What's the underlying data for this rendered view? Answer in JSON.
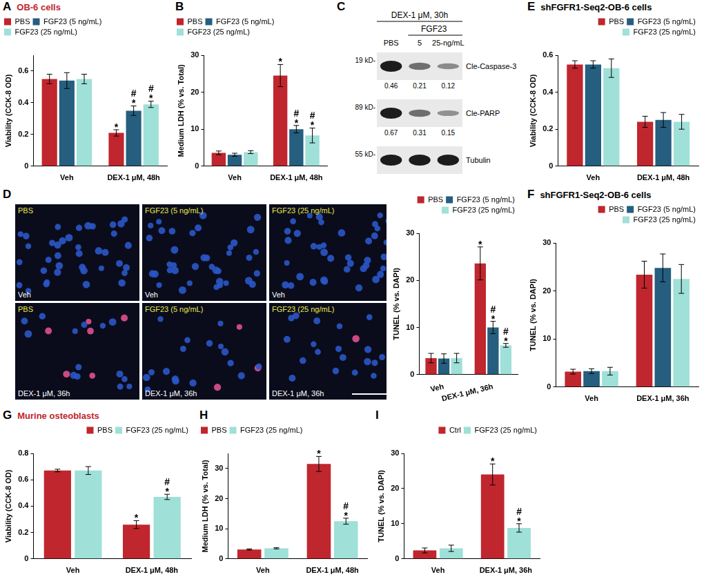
{
  "chart_data": [
    {
      "type": "bar",
      "panel": "A",
      "title": "OB-6 cells",
      "categories": [
        "Veh",
        "DEX-1 μM, 48h"
      ],
      "y_label": "Viability (CCK-8 OD)",
      "ylim": [
        0,
        0.7
      ],
      "yticks": [
        0,
        0.2,
        0.4,
        0.6
      ],
      "grid": false,
      "legend": "upper left",
      "series": [
        {
          "name": "PBS",
          "color": "#c0262d",
          "values": [
            0.55,
            0.21
          ],
          "errors": [
            0.03,
            0.02
          ],
          "annotations": [
            null,
            [
              "*"
            ]
          ]
        },
        {
          "name": "FGF23 (5 ng/mL)",
          "color": "#255e7e",
          "values": [
            0.54,
            0.35
          ],
          "errors": [
            0.05,
            0.03
          ],
          "annotations": [
            null,
            [
              "#",
              "*"
            ]
          ]
        },
        {
          "name": "FGF23 (25 ng/mL)",
          "color": "#9fe0d8",
          "values": [
            0.55,
            0.39
          ],
          "errors": [
            0.03,
            0.02
          ],
          "annotations": [
            null,
            [
              "#",
              "*"
            ]
          ]
        }
      ]
    },
    {
      "type": "bar",
      "panel": "B",
      "categories": [
        "Veh",
        "DEX-1 μM, 48h"
      ],
      "y_label": "Medium LDH (% vs. Total)",
      "ylim": [
        0,
        30
      ],
      "yticks": [
        0,
        10,
        20,
        30
      ],
      "grid": false,
      "legend": "upper left",
      "series": [
        {
          "name": "PBS",
          "color": "#c0262d",
          "values": [
            3.6,
            24.5
          ],
          "errors": [
            0.5,
            3
          ],
          "annotations": [
            null,
            [
              "*"
            ]
          ]
        },
        {
          "name": "FGF23 (5 ng/mL)",
          "color": "#255e7e",
          "values": [
            3.1,
            10
          ],
          "errors": [
            0.4,
            1
          ],
          "annotations": [
            null,
            [
              "#",
              "*"
            ]
          ]
        },
        {
          "name": "FGF23 (25 ng/mL)",
          "color": "#9fe0d8",
          "values": [
            3.8,
            8.3
          ],
          "errors": [
            0.4,
            2
          ],
          "annotations": [
            null,
            [
              "#",
              "*"
            ]
          ]
        }
      ]
    },
    {
      "type": "bar",
      "categories": [
        "Veh",
        "DEX-1 μM, 36h"
      ],
      "y_label": "TUNEL (% vs. DAPI)",
      "ylim": [
        0,
        30
      ],
      "yticks": [
        0,
        10,
        20,
        30
      ],
      "grid": false,
      "legend": "upper right",
      "series": [
        {
          "name": "PBS",
          "color": "#c0262d",
          "values": [
            3.5,
            23.6
          ],
          "errors": [
            1,
            3.5
          ],
          "annotations": [
            null,
            [
              "*"
            ]
          ]
        },
        {
          "name": "FGF23 (5 ng/mL)",
          "color": "#255e7e",
          "values": [
            3.4,
            10
          ],
          "errors": [
            1,
            1.3
          ],
          "annotations": [
            null,
            [
              "#",
              "*"
            ]
          ]
        },
        {
          "name": "FGF23 (25 ng/mL)",
          "color": "#9fe0d8",
          "values": [
            3.5,
            6.2
          ],
          "errors": [
            1,
            0.4
          ],
          "annotations": [
            null,
            [
              "#",
              "*"
            ]
          ]
        }
      ]
    },
    {
      "type": "bar",
      "panel": "E",
      "title": "shFGFR1-Seq2-OB-6 cells",
      "categories": [
        "Veh",
        "DEX-1 μM, 48h"
      ],
      "y_label": "Viability (CCK-8 OD)",
      "ylim": [
        0,
        0.6
      ],
      "yticks": [
        0,
        0.2,
        0.4,
        0.6
      ],
      "grid": false,
      "legend": "upper right",
      "series": [
        {
          "name": "PBS",
          "color": "#c0262d",
          "values": [
            0.55,
            0.24
          ],
          "errors": [
            0.02,
            0.03
          ]
        },
        {
          "name": "FGF23 (5 ng/mL)",
          "color": "#255e7e",
          "values": [
            0.55,
            0.25
          ],
          "errors": [
            0.02,
            0.04
          ]
        },
        {
          "name": "FGF23 (25 ng/mL)",
          "color": "#9fe0d8",
          "values": [
            0.53,
            0.24
          ],
          "errors": [
            0.05,
            0.04
          ]
        }
      ]
    },
    {
      "type": "bar",
      "panel": "F",
      "title": "shFGFR1-Seq2-OB-6 cells",
      "categories": [
        "Veh",
        "DEX-1 μM, 36h"
      ],
      "y_label": "TUNEL (% vs. DAPI)",
      "ylim": [
        0,
        30
      ],
      "yticks": [
        0,
        10,
        20,
        30
      ],
      "grid": false,
      "legend": "upper right",
      "series": [
        {
          "name": "PBS",
          "color": "#c0262d",
          "values": [
            3.2,
            23.4
          ],
          "errors": [
            0.5,
            2.8
          ]
        },
        {
          "name": "FGF23 (5 ng/mL)",
          "color": "#255e7e",
          "values": [
            3.3,
            24.8
          ],
          "errors": [
            0.5,
            2.9
          ]
        },
        {
          "name": "FGF23 (25 ng/mL)",
          "color": "#9fe0d8",
          "values": [
            3.3,
            22.5
          ],
          "errors": [
            0.8,
            3
          ]
        }
      ]
    },
    {
      "type": "bar",
      "panel": "G",
      "title": "Murine osteoblasts",
      "categories": [
        "Veh",
        "DEX-1 μM, 48h"
      ],
      "y_label": "Viability (CCK-8 OD)",
      "ylim": [
        0,
        0.8
      ],
      "yticks": [
        0,
        0.2,
        0.4,
        0.6,
        0.8
      ],
      "grid": false,
      "legend": "upper right",
      "series": [
        {
          "name": "PBS",
          "color": "#c0262d",
          "values": [
            0.67,
            0.26
          ],
          "errors": [
            0.01,
            0.03
          ],
          "annotations": [
            null,
            [
              "*"
            ]
          ]
        },
        {
          "name": "FGF23 (25 ng/mL)",
          "color": "#9fe0d8",
          "values": [
            0.67,
            0.47
          ],
          "errors": [
            0.03,
            0.02
          ],
          "annotations": [
            null,
            [
              "#",
              "*"
            ]
          ]
        }
      ]
    },
    {
      "type": "bar",
      "panel": "H",
      "categories": [
        "Veh",
        "DEX-1 μM, 48h"
      ],
      "y_label": "Medium LDH (% vs. Total)",
      "ylim": [
        0,
        35
      ],
      "yticks": [
        0,
        10,
        20,
        30
      ],
      "grid": false,
      "legend": "upper left",
      "series": [
        {
          "name": "PBS",
          "color": "#c0262d",
          "values": [
            3.1,
            31.5
          ],
          "errors": [
            0.2,
            2.5
          ],
          "annotations": [
            null,
            [
              "*"
            ]
          ]
        },
        {
          "name": "FGF23 (25 ng/mL)",
          "color": "#9fe0d8",
          "values": [
            3.5,
            12.5
          ],
          "errors": [
            0.2,
            1
          ],
          "annotations": [
            null,
            [
              "#",
              "*"
            ]
          ]
        }
      ]
    },
    {
      "type": "bar",
      "panel": "I",
      "categories": [
        "Veh",
        "DEX-1 μM, 36h"
      ],
      "y_label": "TUNEL (% vs. DAPI)",
      "ylim": [
        0,
        30
      ],
      "yticks": [
        0,
        10,
        20,
        30
      ],
      "grid": false,
      "legend": "upper right",
      "series": [
        {
          "name": "Ctrl",
          "color": "#c0262d",
          "values": [
            2.4,
            24
          ],
          "errors": [
            0.7,
            3
          ],
          "annotations": [
            null,
            [
              "*"
            ]
          ]
        },
        {
          "name": "FGF23 (25 ng/mL)",
          "color": "#9fe0d8",
          "values": [
            3,
            8.8
          ],
          "errors": [
            0.9,
            1.2
          ],
          "annotations": [
            null,
            [
              "#",
              "*"
            ]
          ]
        }
      ]
    }
  ],
  "blot": {
    "panel": "C",
    "treatment": "DEX-1 μM, 30h",
    "group_label": "FGF23",
    "lanes": [
      "PBS",
      "5",
      "25-ng/mL"
    ],
    "rows": [
      {
        "size_label": "19 kD-",
        "name": "Cle-Caspase-3",
        "values": [
          0.46,
          0.21,
          0.12
        ]
      },
      {
        "size_label": "89 kD-",
        "name": "Cle-PARP",
        "values": [
          0.67,
          0.31,
          0.15
        ]
      },
      {
        "size_label": "55 kD-",
        "name": "Tubulin"
      }
    ]
  },
  "images": {
    "panel": "D",
    "rows": [
      {
        "condition": "Veh",
        "labels": [
          "PBS",
          "FGF23 (5 ng/mL)",
          "FGF23 (25 ng/mL)"
        ]
      },
      {
        "condition": "DEX-1 μM, 36h",
        "labels": [
          "PBS",
          "FGF23 (5 ng/mL)",
          "FGF23 (25 ng/mL)"
        ]
      }
    ]
  }
}
